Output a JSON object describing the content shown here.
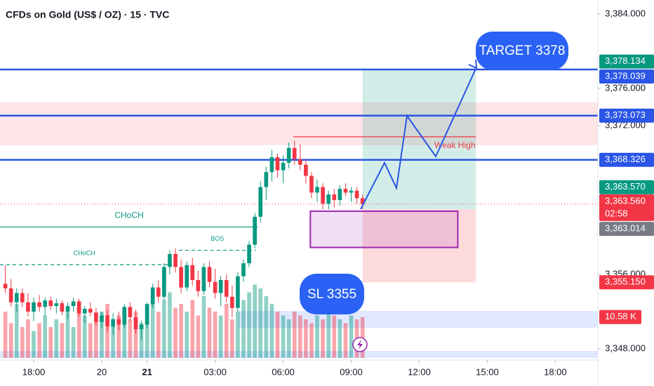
{
  "chart_data": {
    "type": "candlestick",
    "title": "CFDs on Gold (US$ / OZ) · 15 · TVC",
    "x": [
      -5,
      -4,
      -3,
      -2,
      -1,
      0,
      1,
      2,
      3,
      4,
      5,
      6,
      7,
      8,
      9,
      10,
      11,
      12,
      13,
      14,
      15,
      16,
      17,
      18,
      19,
      20,
      21,
      22,
      23,
      24,
      25,
      26,
      27,
      28,
      29,
      30,
      31,
      32,
      33,
      34,
      35,
      36,
      37,
      38,
      39,
      40,
      41,
      42,
      43,
      44,
      45,
      46,
      47,
      48,
      49,
      50,
      51,
      52,
      53,
      54,
      55,
      56,
      57,
      58
    ],
    "ohlc": [
      [
        3355.0,
        3357.0,
        3354.0,
        3354.5
      ],
      [
        3354.5,
        3355.5,
        3352.5,
        3353.0
      ],
      [
        3353.0,
        3354.5,
        3352.0,
        3354.0
      ],
      [
        3354.0,
        3354.5,
        3352.5,
        3353.0
      ],
      [
        3353.0,
        3354.0,
        3351.5,
        3352.0
      ],
      [
        3352.0,
        3353.5,
        3351.0,
        3353.0
      ],
      [
        3353.0,
        3353.8,
        3352.0,
        3352.5
      ],
      [
        3352.5,
        3353.5,
        3351.5,
        3353.2
      ],
      [
        3353.2,
        3353.6,
        3352.2,
        3352.6
      ],
      [
        3352.6,
        3353.4,
        3351.8,
        3352.9
      ],
      [
        3352.9,
        3353.2,
        3351.6,
        3352.0
      ],
      [
        3352.0,
        3353.0,
        3351.2,
        3352.6
      ],
      [
        3352.6,
        3353.5,
        3352.0,
        3353.1
      ],
      [
        3353.1,
        3353.4,
        3351.5,
        3351.8
      ],
      [
        3351.8,
        3352.6,
        3350.8,
        3352.3
      ],
      [
        3352.3,
        3353.0,
        3351.5,
        3351.9
      ],
      [
        3351.9,
        3352.4,
        3350.5,
        3350.9
      ],
      [
        3350.9,
        3352.0,
        3350.2,
        3351.6
      ],
      [
        3351.6,
        3352.2,
        3349.8,
        3350.4
      ],
      [
        3350.4,
        3351.8,
        3349.5,
        3351.2
      ],
      [
        3351.2,
        3352.0,
        3350.0,
        3350.6
      ],
      [
        3350.6,
        3352.8,
        3350.2,
        3352.5
      ],
      [
        3352.5,
        3353.0,
        3351.0,
        3351.4
      ],
      [
        3351.4,
        3352.2,
        3349.6,
        3350.1
      ],
      [
        3350.1,
        3351.0,
        3349.0,
        3350.6
      ],
      [
        3350.6,
        3353.0,
        3350.2,
        3352.8
      ],
      [
        3352.8,
        3355.0,
        3352.4,
        3354.6
      ],
      [
        3354.6,
        3355.4,
        3353.0,
        3353.6
      ],
      [
        3353.6,
        3357.2,
        3353.2,
        3356.8
      ],
      [
        3356.8,
        3358.6,
        3356.0,
        3358.2
      ],
      [
        3358.2,
        3358.8,
        3356.2,
        3356.8
      ],
      [
        3356.8,
        3357.6,
        3354.0,
        3354.6
      ],
      [
        3354.6,
        3357.4,
        3354.2,
        3357.0
      ],
      [
        3357.0,
        3357.8,
        3354.8,
        3355.4
      ],
      [
        3355.4,
        3356.4,
        3353.6,
        3354.2
      ],
      [
        3354.2,
        3357.2,
        3353.8,
        3356.8
      ],
      [
        3356.8,
        3357.4,
        3354.6,
        3355.2
      ],
      [
        3355.2,
        3356.6,
        3353.4,
        3354.0
      ],
      [
        3354.0,
        3355.8,
        3352.6,
        3355.4
      ],
      [
        3355.4,
        3356.0,
        3353.0,
        3353.6
      ],
      [
        3353.6,
        3354.8,
        3351.4,
        3352.4
      ],
      [
        3352.4,
        3356.2,
        3352.0,
        3355.8
      ],
      [
        3355.8,
        3357.6,
        3355.2,
        3357.2
      ],
      [
        3357.2,
        3359.6,
        3356.8,
        3359.2
      ],
      [
        3359.2,
        3362.6,
        3358.8,
        3362.2
      ],
      [
        3362.2,
        3366.0,
        3361.6,
        3365.4
      ],
      [
        3365.4,
        3367.6,
        3364.0,
        3367.0
      ],
      [
        3367.0,
        3369.4,
        3366.0,
        3368.6
      ],
      [
        3368.6,
        3369.0,
        3366.4,
        3367.2
      ],
      [
        3367.2,
        3368.8,
        3365.8,
        3368.0
      ],
      [
        3368.0,
        3370.2,
        3367.4,
        3369.6
      ],
      [
        3369.6,
        3370.4,
        3367.8,
        3368.4
      ],
      [
        3368.4,
        3370.0,
        3367.2,
        3367.8
      ],
      [
        3367.8,
        3368.4,
        3365.8,
        3366.6
      ],
      [
        3366.6,
        3367.0,
        3364.2,
        3364.8
      ],
      [
        3364.8,
        3366.2,
        3363.8,
        3365.4
      ],
      [
        3365.4,
        3365.8,
        3363.0,
        3363.6
      ],
      [
        3363.6,
        3365.0,
        3363.0,
        3364.6
      ],
      [
        3364.6,
        3365.2,
        3363.2,
        3364.0
      ],
      [
        3364.0,
        3365.6,
        3363.4,
        3365.2
      ],
      [
        3365.2,
        3365.8,
        3364.4,
        3364.8
      ],
      [
        3364.8,
        3365.4,
        3363.8,
        3365.0
      ],
      [
        3365.0,
        3365.4,
        3363.6,
        3364.2
      ],
      [
        3364.2,
        3364.6,
        3363.0,
        3363.56
      ]
    ],
    "volume": [
      12,
      9,
      14,
      8,
      10,
      7,
      9,
      11,
      8,
      10,
      9,
      12,
      8,
      13,
      11,
      9,
      10,
      12,
      14,
      9,
      11,
      13,
      10,
      12,
      9,
      14,
      16,
      12,
      15,
      17,
      13,
      14,
      12,
      15,
      11,
      16,
      13,
      12,
      11,
      14,
      10,
      12,
      15,
      17,
      19,
      18,
      16,
      14,
      12,
      11,
      10,
      12,
      11,
      10,
      9,
      11,
      10,
      12,
      11,
      10,
      9,
      11,
      10,
      10.58
    ],
    "colors": {
      "up": "#089981",
      "down": "#f23645",
      "line": "#2a55e5"
    },
    "ylim": [
      3347.02,
      3385.51
    ],
    "xlim": [
      -5.94,
      99.5
    ],
    "vlim": [
      0,
      92.7
    ],
    "yticks": [
      {
        "value": 3384,
        "label": "3,384.000"
      },
      {
        "value": 3376,
        "label": "3,376.000"
      },
      {
        "value": 3372,
        "label": "3,372.000"
      },
      {
        "value": 3356,
        "label": "3,356.000"
      },
      {
        "value": 3348,
        "label": "3,348.000"
      }
    ],
    "xticks": [
      {
        "value": 0,
        "label": "18:00"
      },
      {
        "value": 12,
        "label": "20"
      },
      {
        "value": 20,
        "label": "21"
      },
      {
        "value": 32,
        "label": "03:00"
      },
      {
        "value": 44,
        "label": "06:00"
      },
      {
        "value": 56,
        "label": "09:00"
      },
      {
        "value": 68,
        "label": "12:00"
      },
      {
        "value": 80,
        "label": "15:00"
      },
      {
        "value": 92,
        "label": "18:00"
      }
    ],
    "price_labels": [
      {
        "value": 3378.134,
        "label": "3,378.134",
        "color": "#089981"
      },
      {
        "value": 3378.039,
        "label": "3,378.039",
        "color": "#2a55e5",
        "line": true
      },
      {
        "value": 3373.073,
        "label": "3,373.073",
        "color": "#2a55e5",
        "line": true
      },
      {
        "value": 3368.326,
        "label": "3,368.326",
        "color": "#2a55e5",
        "line": true
      },
      {
        "value": 3363.57,
        "label": "3,363.570",
        "color": "#089981"
      },
      {
        "value": 3363.56,
        "label": "3,363.560",
        "color": "#f23645",
        "sub": "02:58"
      },
      {
        "value": 3363.014,
        "label": "3,363.014",
        "color": "#787b86"
      },
      {
        "value": 3355.15,
        "label": "3,355.150",
        "color": "#f23645"
      }
    ],
    "volume_label": "10.58 K",
    "zones": [
      {
        "top": 3374.5,
        "bottom": 3369.9,
        "x0": -5.94,
        "x1": 99.5,
        "color": "rgba(242,54,69,0.13)"
      },
      {
        "top": 3378.039,
        "bottom": 3363.014,
        "x0": 58,
        "x1": 78,
        "color": "rgba(8,153,129,0.18)"
      },
      {
        "top": 3363.014,
        "bottom": 3355.15,
        "x0": 58,
        "x1": 78,
        "color": "rgba(242,54,69,0.18)"
      },
      {
        "top": 3362.8,
        "bottom": 3358.9,
        "x0": 48.8,
        "x1": 74.8,
        "color": "rgba(156,39,176,0.15)",
        "stroke": "#9c27b0"
      }
    ],
    "annotations": [
      {
        "text": "Weak High",
        "price": 3370.8,
        "x0": 45.8,
        "x1": 78,
        "color": "#f23645",
        "dash": false
      },
      {
        "text": "CHoCH",
        "price": 3361.1,
        "x0": -5.94,
        "x1": 39.6,
        "color": "#089981",
        "dash": false
      },
      {
        "text": "BOS",
        "price": 3358.6,
        "x0": 25.6,
        "x1": 39.2,
        "color": "#089981",
        "dash": true
      },
      {
        "text": "CHoCH",
        "price": 3357.05,
        "x0": -5.94,
        "x1": 23.8,
        "color": "#089981",
        "dash": true
      }
    ],
    "target_text": "TARGET 3378",
    "sl_text": "SL 3355"
  }
}
